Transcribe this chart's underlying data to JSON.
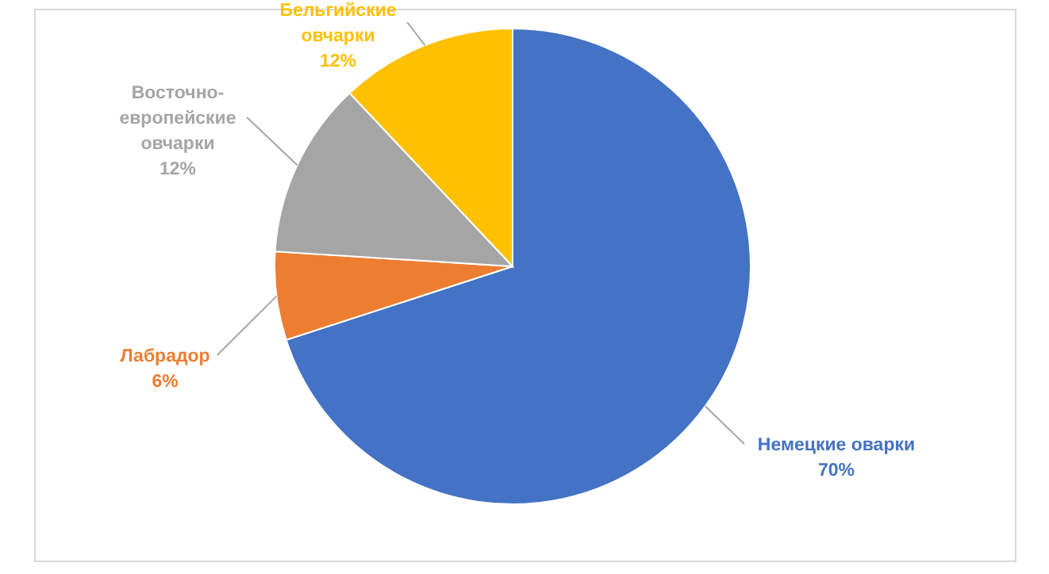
{
  "chart_data": {
    "type": "pie",
    "categories": [
      "Немецкие оварки",
      "Лабрадор",
      "Восточно-европейские овчарки",
      "Бельгийские овчарки"
    ],
    "values": [
      70,
      6,
      12,
      12
    ],
    "colors": [
      "#4472c4",
      "#ed7d31",
      "#a5a5a5",
      "#ffc000"
    ],
    "value_labels": [
      "70%",
      "6%",
      "12%",
      "12%"
    ]
  }
}
